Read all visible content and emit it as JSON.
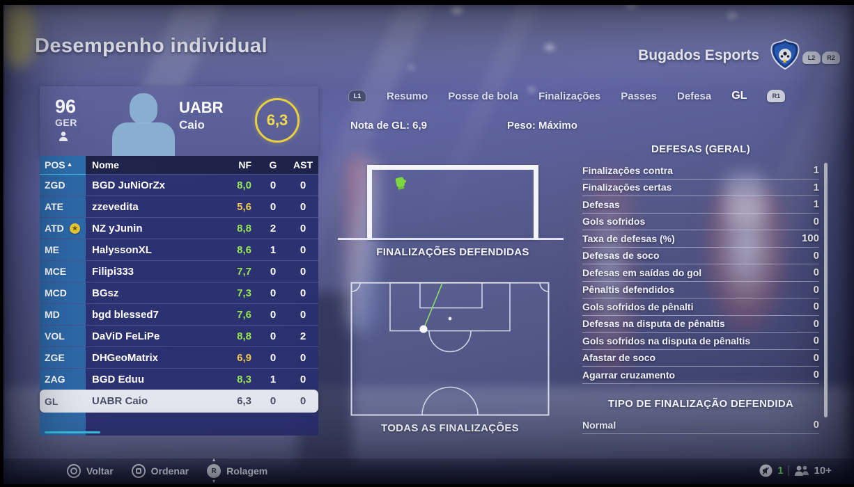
{
  "page": {
    "title": "Desempenho individual"
  },
  "team": {
    "name": "Bugados Esports"
  },
  "shoulder_buttons": {
    "l1": "L1",
    "r1": "R1",
    "l2": "L2",
    "r2": "R2"
  },
  "player_card": {
    "overall": "96",
    "position": "GER",
    "club": "UABR",
    "name": "Caio",
    "match_rating": "6,3"
  },
  "tabs": [
    {
      "label": "Resumo",
      "active": false
    },
    {
      "label": "Posse de bola",
      "active": false
    },
    {
      "label": "Finalizações",
      "active": false
    },
    {
      "label": "Passes",
      "active": false
    },
    {
      "label": "Defesa",
      "active": false
    },
    {
      "label": "GL",
      "active": true
    }
  ],
  "subheader": {
    "gk_rating_label": "Nota de GL:",
    "gk_rating_value": "6,9",
    "weight_label": "Peso:",
    "weight_value": "Máximo"
  },
  "table": {
    "sort_indicator": "▲",
    "headers": {
      "pos": "POS",
      "name": "Nome",
      "nf": "NF",
      "g": "G",
      "ast": "AST"
    },
    "rows": [
      {
        "pos": "ZGD",
        "name": "BGD JuNiOrZx",
        "nf": "8,0",
        "nf_color": "green",
        "g": "0",
        "ast": "0",
        "captain": false,
        "selected": false
      },
      {
        "pos": "ATE",
        "name": "zzevedita",
        "nf": "5,6",
        "nf_color": "yellow",
        "g": "0",
        "ast": "0",
        "captain": false,
        "selected": false
      },
      {
        "pos": "ATD",
        "name": "NZ yJunin",
        "nf": "8,8",
        "nf_color": "green",
        "g": "2",
        "ast": "0",
        "captain": true,
        "selected": false
      },
      {
        "pos": "ME",
        "name": "HalyssonXL",
        "nf": "8,6",
        "nf_color": "green",
        "g": "1",
        "ast": "0",
        "captain": false,
        "selected": false
      },
      {
        "pos": "MCE",
        "name": "Filipi333",
        "nf": "7,7",
        "nf_color": "green",
        "g": "0",
        "ast": "0",
        "captain": false,
        "selected": false
      },
      {
        "pos": "MCD",
        "name": "BGsz",
        "nf": "7,3",
        "nf_color": "green",
        "g": "0",
        "ast": "0",
        "captain": false,
        "selected": false
      },
      {
        "pos": "MD",
        "name": "bgd blessed7",
        "nf": "7,6",
        "nf_color": "green",
        "g": "0",
        "ast": "0",
        "captain": false,
        "selected": false
      },
      {
        "pos": "VOL",
        "name": "DaViD FeLiPe",
        "nf": "8,8",
        "nf_color": "green",
        "g": "0",
        "ast": "2",
        "captain": false,
        "selected": false
      },
      {
        "pos": "ZGE",
        "name": "DHGeoMatrix",
        "nf": "6,9",
        "nf_color": "yellow",
        "g": "0",
        "ast": "0",
        "captain": false,
        "selected": false
      },
      {
        "pos": "ZAG",
        "name": "BGD Eduu",
        "nf": "8,3",
        "nf_color": "green",
        "g": "1",
        "ast": "0",
        "captain": false,
        "selected": false
      },
      {
        "pos": "GL",
        "name": "UABR Caio",
        "nf": "6,3",
        "nf_color": "neutral",
        "g": "0",
        "ast": "0",
        "captain": false,
        "selected": true
      }
    ]
  },
  "sections": {
    "goal_label": "FINALIZAÇÕES DEFENDIDAS",
    "pitch_label": "TODAS AS FINALIZAÇÕES"
  },
  "stats_panel": {
    "title": "DEFESAS (GERAL)",
    "rows": [
      {
        "label": "Finalizações contra",
        "value": "1"
      },
      {
        "label": "Finalizações certas",
        "value": "1"
      },
      {
        "label": "Defesas",
        "value": "1"
      },
      {
        "label": "Gols sofridos",
        "value": "0"
      },
      {
        "label": "Taxa de defesas (%)",
        "value": "100"
      },
      {
        "label": "Defesas de soco",
        "value": "0"
      },
      {
        "label": "Defesas em saídas do gol",
        "value": "0"
      },
      {
        "label": "Pênaltis defendidos",
        "value": "0"
      },
      {
        "label": "Gols sofridos de pênalti",
        "value": "0"
      },
      {
        "label": "Defesas na disputa de pênaltis",
        "value": "0"
      },
      {
        "label": "Gols sofridos na disputa de pênaltis",
        "value": "0"
      },
      {
        "label": "Afastar de soco",
        "value": "0"
      },
      {
        "label": "Agarrar cruzamento",
        "value": "0"
      }
    ]
  },
  "save_type_panel": {
    "title": "TIPO DE FINALIZAÇÃO DEFENDIDA",
    "rows": [
      {
        "label": "Normal",
        "value": "0"
      }
    ]
  },
  "footer": {
    "hints": [
      {
        "button": "circle",
        "label": "Voltar"
      },
      {
        "button": "square",
        "label": "Ordenar"
      },
      {
        "button": "right-stick",
        "label": "Rolagem"
      }
    ],
    "status": {
      "voice_count": "1",
      "players_online": "10+"
    }
  },
  "colors": {
    "accent_cyan": "#3fc9e8",
    "rating_green": "#96e850",
    "rating_yellow": "#f2c94c",
    "rating_ring": "#e8d03e",
    "pos_column": "#2d6cab",
    "selected_row": "#e4e7f0"
  }
}
